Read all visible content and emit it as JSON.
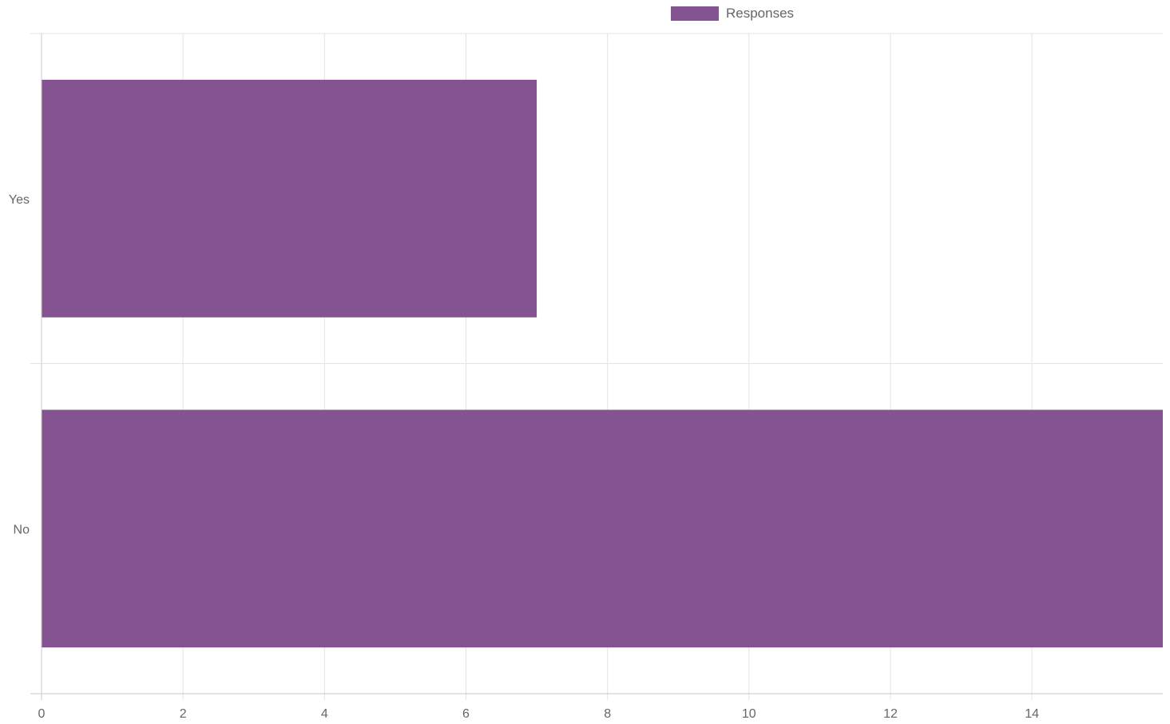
{
  "chart_data": {
    "type": "bar",
    "orientation": "horizontal",
    "categories": [
      "Yes",
      "No"
    ],
    "series": [
      {
        "name": "Responses",
        "values": [
          7,
          16
        ],
        "color": "#835491"
      }
    ],
    "xlim": [
      0,
      15.85
    ],
    "x_ticks": [
      "0",
      "2",
      "4",
      "6",
      "8",
      "10",
      "12",
      "14"
    ],
    "grid": true,
    "legend_position": "top-center",
    "title": "",
    "xlabel": "",
    "ylabel": ""
  },
  "legend": {
    "label": "Responses",
    "color": "#835491"
  },
  "colors": {
    "grid": "#e4e4e4",
    "axis": "#c8c8c8",
    "tick_text": "#666666"
  }
}
